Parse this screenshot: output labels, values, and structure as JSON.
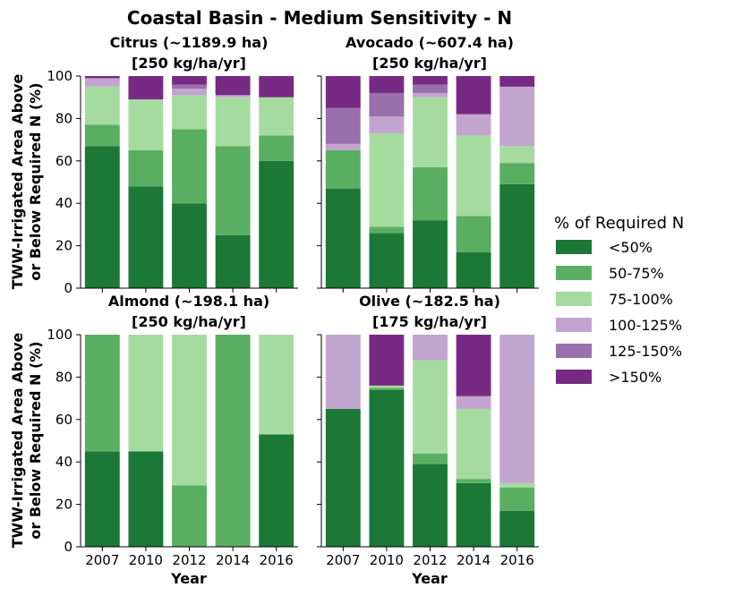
{
  "title": "Coastal Basin - Medium Sensitivity - N",
  "legend": {
    "title": "% of Required N",
    "items": [
      {
        "label": "<50%",
        "color": "#1b7837"
      },
      {
        "label": "50-75%",
        "color": "#5aae61"
      },
      {
        "label": "75-100%",
        "color": "#a6dba0"
      },
      {
        "label": "100-125%",
        "color": "#c2a5cf"
      },
      {
        "label": "125-150%",
        "color": "#9970ab"
      },
      {
        "label": ">150%",
        "color": "#762a83"
      }
    ]
  },
  "chart_data": [
    {
      "type": "bar",
      "stacked": true,
      "title_line1": "Citrus (~1189.9 ha)",
      "title_line2": "[250 kg/ha/yr]",
      "ylabel_line1": "TWW-Irrigated Area Above",
      "ylabel_line2": "or Below Required N (%)",
      "xlabel": "",
      "ylim": [
        0,
        100
      ],
      "yticks": [
        0,
        20,
        40,
        60,
        80,
        100
      ],
      "categories": [
        "2007",
        "2010",
        "2012",
        "2014",
        "2016"
      ],
      "series": [
        {
          "name": "<50%",
          "values": [
            67,
            48,
            40,
            25,
            60
          ]
        },
        {
          "name": "50-75%",
          "values": [
            10,
            17,
            35,
            42,
            12
          ]
        },
        {
          "name": "75-100%",
          "values": [
            18,
            24,
            16,
            23,
            18
          ]
        },
        {
          "name": "100-125%",
          "values": [
            4,
            0,
            3,
            1,
            0
          ]
        },
        {
          "name": "125-150%",
          "values": [
            0,
            0,
            2,
            0,
            0
          ]
        },
        {
          "name": ">150%",
          "values": [
            1,
            11,
            4,
            9,
            10
          ]
        }
      ]
    },
    {
      "type": "bar",
      "stacked": true,
      "title_line1": "Avocado (~607.4 ha)",
      "title_line2": "[250 kg/ha/yr]",
      "xlabel": "",
      "ylim": [
        0,
        100
      ],
      "categories": [
        "2007",
        "2010",
        "2012",
        "2014",
        "2016"
      ],
      "series": [
        {
          "name": "<50%",
          "values": [
            47,
            26,
            32,
            17,
            49
          ]
        },
        {
          "name": "50-75%",
          "values": [
            18,
            3,
            25,
            17,
            10
          ]
        },
        {
          "name": "75-100%",
          "values": [
            0,
            44,
            33,
            38,
            8
          ]
        },
        {
          "name": "100-125%",
          "values": [
            3,
            8,
            2,
            10,
            28
          ]
        },
        {
          "name": "125-150%",
          "values": [
            17,
            11,
            4,
            0,
            0
          ]
        },
        {
          "name": ">150%",
          "values": [
            15,
            8,
            4,
            18,
            5
          ]
        }
      ]
    },
    {
      "type": "bar",
      "stacked": true,
      "title_line1": "Almond (~198.1 ha)",
      "title_line2": "[250 kg/ha/yr]",
      "ylabel_line1": "TWW-Irrigated Area Above",
      "ylabel_line2": "or Below Required N (%)",
      "xlabel": "Year",
      "ylim": [
        0,
        100
      ],
      "yticks": [
        0,
        20,
        40,
        60,
        80,
        100
      ],
      "categories": [
        "2007",
        "2010",
        "2012",
        "2014",
        "2016"
      ],
      "series": [
        {
          "name": "<50%",
          "values": [
            45,
            45,
            0,
            0,
            53
          ]
        },
        {
          "name": "50-75%",
          "values": [
            55,
            0,
            29,
            100,
            0
          ]
        },
        {
          "name": "75-100%",
          "values": [
            0,
            55,
            71,
            0,
            47
          ]
        },
        {
          "name": "100-125%",
          "values": [
            0,
            0,
            0,
            0,
            0
          ]
        },
        {
          "name": "125-150%",
          "values": [
            0,
            0,
            0,
            0,
            0
          ]
        },
        {
          "name": ">150%",
          "values": [
            0,
            0,
            0,
            0,
            0
          ]
        }
      ]
    },
    {
      "type": "bar",
      "stacked": true,
      "title_line1": "Olive (~182.5 ha)",
      "title_line2": "[175 kg/ha/yr]",
      "xlabel": "Year",
      "ylim": [
        0,
        100
      ],
      "categories": [
        "2007",
        "2010",
        "2012",
        "2014",
        "2016"
      ],
      "series": [
        {
          "name": "<50%",
          "values": [
            65,
            74,
            39,
            30,
            17
          ]
        },
        {
          "name": "50-75%",
          "values": [
            0,
            1,
            5,
            2,
            11
          ]
        },
        {
          "name": "75-100%",
          "values": [
            0,
            1,
            44,
            33,
            2
          ]
        },
        {
          "name": "100-125%",
          "values": [
            35,
            0,
            12,
            6,
            70
          ]
        },
        {
          "name": "125-150%",
          "values": [
            0,
            0,
            0,
            0,
            0
          ]
        },
        {
          "name": ">150%",
          "values": [
            0,
            24,
            0,
            29,
            0
          ]
        }
      ]
    }
  ]
}
